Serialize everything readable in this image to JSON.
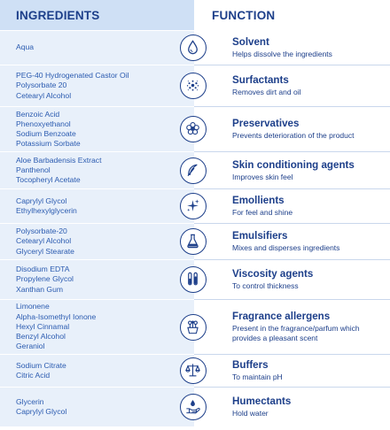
{
  "header": {
    "ingredients": "INGREDIENTS",
    "function": "FUNCTION"
  },
  "rows": [
    {
      "ingredients": [
        "Aqua"
      ],
      "title": "Solvent",
      "desc": "Helps dissolve the ingredients",
      "icon": "water-drop-icon"
    },
    {
      "ingredients": [
        "PEG-40 Hydrogenated Castor Oil",
        "Polysorbate 20",
        "Cetearyl Alcohol"
      ],
      "title": "Surfactants",
      "desc": "Removes dirt and oil",
      "icon": "bubbles-icon"
    },
    {
      "ingredients": [
        "Benzoic Acid",
        "Phenoxyethanol",
        "Sodium Benzoate",
        "Potassium Sorbate"
      ],
      "title": "Preservatives",
      "desc": "Prevents deterioration of the product",
      "icon": "flower-icon"
    },
    {
      "ingredients": [
        "Aloe Barbadensis Extract",
        "Panthenol",
        "Tocopheryl Acetate"
      ],
      "title": "Skin conditioning agents",
      "desc": "Improves skin feel",
      "icon": "feather-icon"
    },
    {
      "ingredients": [
        "Caprylyl Glycol",
        "Ethylhexylglycerin"
      ],
      "title": "Emollients",
      "desc": "For feel and shine",
      "icon": "sparkle-icon"
    },
    {
      "ingredients": [
        "Polysorbate-20",
        "Cetearyl Alcohol",
        "Glyceryl Stearate"
      ],
      "title": "Emulsifiers",
      "desc": "Mixes and disperses ingredients",
      "icon": "flask-icon"
    },
    {
      "ingredients": [
        "Disodium EDTA",
        "Propylene Glycol",
        "Xanthan Gum"
      ],
      "title": "Viscosity agents",
      "desc": "To control thickness",
      "icon": "test-tubes-icon"
    },
    {
      "ingredients": [
        "Limonene",
        "Alpha-Isomethyl Ionone",
        "Hexyl Cinnamal",
        "Benzyl Alcohol",
        "Geraniol"
      ],
      "title": "Fragrance allergens",
      "desc": "Present in the fragrance/parfum which provides a pleasant scent",
      "icon": "flower-pot-icon"
    },
    {
      "ingredients": [
        "Sodium Citrate",
        "Citric Acid"
      ],
      "title": "Buffers",
      "desc": "To maintain pH",
      "icon": "balance-scale-icon"
    },
    {
      "ingredients": [
        "Glycerin",
        "Caprylyl Glycol"
      ],
      "title": "Humectants",
      "desc": "Hold water",
      "icon": "hand-drop-icon"
    }
  ],
  "colors": {
    "navy": "#1d3f8a",
    "link_blue": "#2b5bb0",
    "header_bg": "#cfe0f5",
    "cell_bg": "#e8f0fa"
  }
}
